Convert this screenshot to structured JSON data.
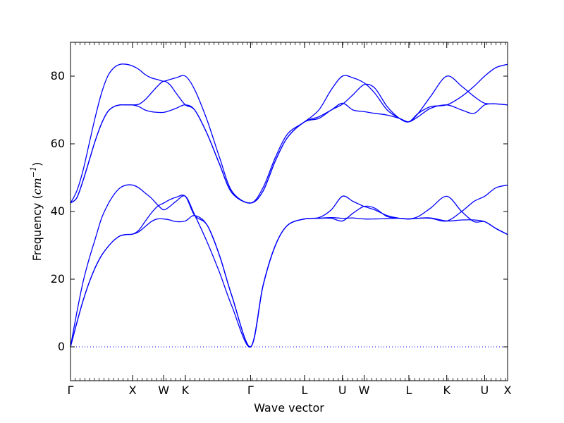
{
  "chart_data": {
    "type": "line",
    "title": "",
    "xlabel": "Wave vector",
    "ylabel_text": "Frequency (",
    "ylabel_math": "cm",
    "ylabel_sup": "−1",
    "ylabel_close": ")",
    "ylim": [
      -10,
      90
    ],
    "xlim": [
      0,
      7.04
    ],
    "yticks": [
      0,
      20,
      40,
      60,
      80
    ],
    "ytick_labels": [
      "0",
      "20",
      "40",
      "60",
      "80"
    ],
    "grid": false,
    "legend": "none",
    "line_color": "#0000ff",
    "zero_line_color": "#0000ff",
    "xticks": [
      {
        "label": "Γ",
        "x": 0.0
      },
      {
        "label": "X",
        "x": 1.0
      },
      {
        "label": "W",
        "x": 1.5
      },
      {
        "label": "K",
        "x": 1.85
      },
      {
        "label": "Γ",
        "x": 2.9
      },
      {
        "label": "L",
        "x": 3.77
      },
      {
        "label": "U",
        "x": 4.38
      },
      {
        "label": "W",
        "x": 4.73
      },
      {
        "label": "L",
        "x": 5.45
      },
      {
        "label": "K",
        "x": 6.06
      },
      {
        "label": "U",
        "x": 6.67
      },
      {
        "label": "X",
        "x": 7.04
      }
    ],
    "series": [
      {
        "x": [
          0,
          0.1,
          0.2,
          0.3,
          0.4,
          0.5,
          0.6,
          0.7,
          0.8,
          0.9,
          1.0,
          1.1,
          1.2,
          1.3,
          1.4,
          1.5,
          1.6,
          1.7,
          1.85,
          2.0,
          2.2,
          2.4,
          2.6,
          2.9,
          3.1,
          3.3,
          3.5,
          3.77,
          4.0,
          4.2,
          4.38,
          4.55,
          4.73,
          4.9,
          5.1,
          5.3,
          5.45,
          5.6,
          5.8,
          6.06,
          6.3,
          6.5,
          6.67,
          6.85,
          7.04
        ],
        "y": [
          42.5,
          46,
          52,
          60,
          68,
          75,
          80,
          82.5,
          83.5,
          83.5,
          83,
          82,
          80.5,
          79.5,
          79,
          78.5,
          79,
          79.5,
          80,
          76,
          67,
          56,
          46,
          42.5,
          47,
          56,
          63,
          66.5,
          70,
          76,
          80,
          79.5,
          78,
          75,
          70,
          67.5,
          66.5,
          69,
          74,
          80,
          77,
          74,
          72,
          71.8,
          71.5
        ]
      },
      {
        "x": [
          0,
          0.1,
          0.2,
          0.3,
          0.4,
          0.5,
          0.6,
          0.7,
          0.8,
          0.9,
          1.0,
          1.1,
          1.2,
          1.3,
          1.4,
          1.5,
          1.6,
          1.7,
          1.85,
          2.0,
          2.2,
          2.4,
          2.6,
          2.9,
          3.1,
          3.3,
          3.5,
          3.77,
          4.0,
          4.2,
          4.38,
          4.55,
          4.73,
          4.9,
          5.1,
          5.3,
          5.45,
          5.6,
          5.8,
          6.06,
          6.3,
          6.5,
          6.67,
          6.85,
          7.04
        ],
        "y": [
          42.5,
          44,
          49,
          55,
          61,
          66,
          69.5,
          71,
          71.5,
          71.5,
          71.5,
          71.7,
          73,
          75,
          77,
          78.5,
          77.5,
          75,
          71.5,
          70,
          63,
          54,
          45.5,
          42.5,
          46,
          55,
          62,
          66.5,
          68,
          70,
          72,
          70,
          69.5,
          69,
          68.5,
          67.5,
          66.5,
          68,
          70.5,
          71.5,
          70,
          69,
          71.5,
          71.8,
          71.5
        ]
      },
      {
        "x": [
          0,
          0.1,
          0.2,
          0.3,
          0.4,
          0.5,
          0.6,
          0.7,
          0.8,
          0.9,
          1.0,
          1.1,
          1.2,
          1.3,
          1.4,
          1.5,
          1.6,
          1.7,
          1.85,
          2.0,
          2.2,
          2.4,
          2.6,
          2.9,
          3.1,
          3.3,
          3.5,
          3.77,
          4.0,
          4.2,
          4.38,
          4.55,
          4.73,
          4.9,
          5.1,
          5.3,
          5.45,
          5.6,
          5.8,
          6.06,
          6.3,
          6.5,
          6.67,
          6.85,
          7.04
        ],
        "y": [
          42.5,
          44,
          49,
          55,
          61,
          66,
          69.5,
          71,
          71.5,
          71.5,
          71.5,
          71,
          70,
          69.5,
          69.3,
          69.3,
          69.8,
          70.5,
          71.5,
          70,
          63,
          54,
          45.5,
          42.5,
          46,
          55,
          62,
          66.5,
          67.5,
          70,
          71.7,
          74.5,
          77.5,
          76.5,
          71,
          67.5,
          66.5,
          69,
          71,
          71.5,
          74,
          77,
          80,
          82.5,
          83.5
        ]
      },
      {
        "x": [
          0,
          0.1,
          0.2,
          0.3,
          0.4,
          0.5,
          0.6,
          0.7,
          0.8,
          0.9,
          1.0,
          1.1,
          1.2,
          1.3,
          1.4,
          1.5,
          1.6,
          1.7,
          1.85,
          2.0,
          2.2,
          2.4,
          2.6,
          2.9,
          3.1,
          3.3,
          3.5,
          3.77,
          4.0,
          4.2,
          4.38,
          4.55,
          4.73,
          4.9,
          5.1,
          5.3,
          5.45,
          5.6,
          5.8,
          6.06,
          6.3,
          6.5,
          6.67,
          6.85,
          7.04
        ],
        "y": [
          0,
          10,
          19,
          26,
          32,
          38,
          42,
          45,
          47,
          47.8,
          47.8,
          47,
          45.5,
          44,
          42,
          40.5,
          41.5,
          43,
          44.5,
          39,
          31,
          22,
          12,
          0,
          18,
          30,
          36,
          37.8,
          38,
          38.2,
          38,
          38.1,
          37.8,
          37.8,
          37.9,
          38,
          37.8,
          38,
          38.1,
          37.2,
          37.5,
          37.5,
          37,
          35,
          33.2
        ]
      },
      {
        "x": [
          0,
          0.1,
          0.2,
          0.3,
          0.4,
          0.5,
          0.6,
          0.7,
          0.8,
          0.9,
          1.0,
          1.1,
          1.2,
          1.3,
          1.4,
          1.5,
          1.6,
          1.7,
          1.85,
          2.0,
          2.2,
          2.4,
          2.6,
          2.9,
          3.1,
          3.3,
          3.5,
          3.77,
          4.0,
          4.2,
          4.38,
          4.55,
          4.73,
          4.9,
          5.1,
          5.3,
          5.45,
          5.6,
          5.8,
          6.06,
          6.3,
          6.5,
          6.67,
          6.85,
          7.04
        ],
        "y": [
          0,
          7,
          13.5,
          19,
          23.5,
          27,
          29.5,
          31.5,
          32.8,
          33.2,
          33.3,
          34,
          35.5,
          37,
          37.8,
          37.8,
          37.5,
          37,
          37.2,
          38.8,
          36,
          27,
          15,
          0,
          18,
          30,
          36,
          37.8,
          38,
          38,
          37.2,
          39.5,
          41.5,
          41,
          38.5,
          38,
          37.8,
          38.5,
          41,
          44.5,
          40,
          37,
          37,
          35,
          33.2
        ]
      },
      {
        "x": [
          0,
          0.1,
          0.2,
          0.3,
          0.4,
          0.5,
          0.6,
          0.7,
          0.8,
          0.9,
          1.0,
          1.1,
          1.2,
          1.3,
          1.4,
          1.5,
          1.6,
          1.7,
          1.85,
          2.0,
          2.2,
          2.4,
          2.6,
          2.9,
          3.1,
          3.3,
          3.5,
          3.77,
          4.0,
          4.2,
          4.38,
          4.55,
          4.73,
          4.9,
          5.1,
          5.3,
          5.45,
          5.6,
          5.8,
          6.06,
          6.3,
          6.5,
          6.67,
          6.85,
          7.04
        ],
        "y": [
          0,
          7,
          13.5,
          19,
          23.5,
          27,
          29.5,
          31.5,
          32.8,
          33.2,
          33.3,
          34.5,
          37,
          39.5,
          41.5,
          42.5,
          43.5,
          44.2,
          44.5,
          38.8,
          36,
          27,
          15,
          0,
          18,
          30,
          36,
          37.8,
          38.2,
          40.5,
          44.5,
          43,
          41.5,
          40.5,
          38.8,
          38,
          37.8,
          38,
          38,
          37.2,
          40,
          43,
          44.5,
          47,
          47.8
        ]
      }
    ]
  }
}
